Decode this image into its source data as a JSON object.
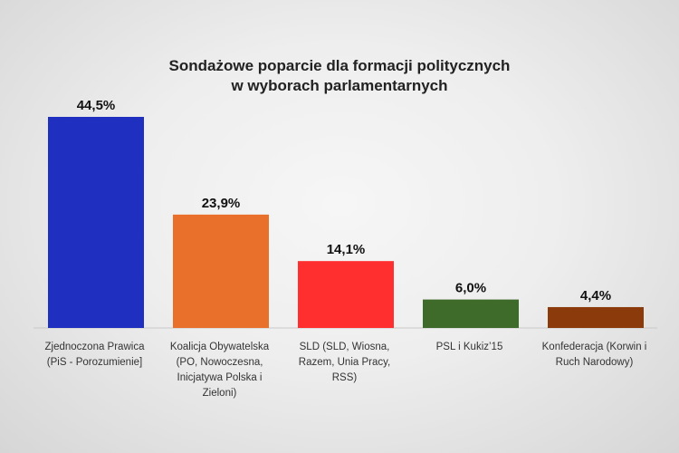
{
  "chart_data": {
    "type": "bar",
    "title_lines": [
      "Sondażowe poparcie dla formacji politycznych",
      "w wyborach parlamentarnych"
    ],
    "categories": [
      "Zjednoczona Prawica (PiS - Porozumienie]",
      "Koalicja Obywatelska (PO, Nowoczesna, Inicjatywa Polska i Zieloni)",
      "SLD (SLD, Wiosna, Razem, Unia Pracy, RSS)",
      "PSL i Kukiz’15",
      "Konfederacja (Korwin i Ruch Narodowy)"
    ],
    "values": [
      44.5,
      23.9,
      14.1,
      6.0,
      4.4
    ],
    "value_labels": [
      "44,5%",
      "23,9%",
      "14,1%",
      "6,0%",
      "4,4%"
    ],
    "colors": [
      "#1f2fbf",
      "#e8702a",
      "#ff2f2f",
      "#3f6b2a",
      "#8b3a0b"
    ],
    "ylim": [
      0,
      44.5
    ],
    "grid": false,
    "legend": "none"
  }
}
